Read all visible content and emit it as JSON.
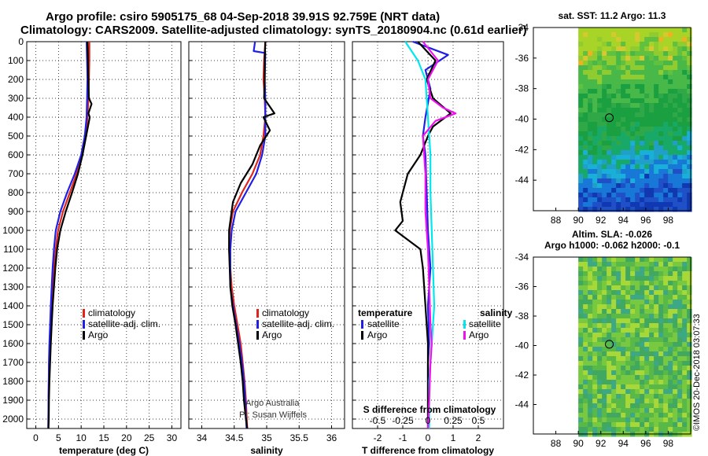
{
  "header": {
    "title_line1": "Argo profile: csiro 5905175_68 04-Sep-2018 39.91S 92.759E (NRT data)",
    "title_line2": "Climatology: CARS2009. Satellite-adjusted climatology: synTS_20180904.nc (0.61d earlier)"
  },
  "colors": {
    "climatology": "#e0241b",
    "satellite": "#1f1fe6",
    "argo": "#000000",
    "sat_salinity": "#00e8ee",
    "argo_salinity": "#ee10ee"
  },
  "chart_data": [
    {
      "type": "line",
      "name": "temperature",
      "xlabel": "temperature (deg C)",
      "xlim": [
        -2,
        32
      ],
      "xticks": [
        0,
        5,
        10,
        15,
        20,
        25,
        30
      ],
      "ylim": [
        0,
        2050
      ],
      "yticks": [
        0,
        100,
        200,
        300,
        400,
        500,
        600,
        700,
        800,
        900,
        1000,
        1100,
        1200,
        1300,
        1400,
        1500,
        1600,
        1700,
        1800,
        1900,
        2000
      ],
      "legend": [
        "climatology",
        "satellite-adj. clim.",
        "Argo"
      ],
      "series": [
        {
          "name": "climatology",
          "color": "#e0241b",
          "x": [
            11.8,
            11.8,
            11.7,
            11.6,
            11.4,
            11.0,
            10.2,
            9.0,
            7.5,
            6.0,
            4.9,
            4.4,
            4.0,
            3.7,
            3.4,
            3.2,
            3.05,
            2.95,
            2.85,
            2.8,
            2.75
          ],
          "y": [
            0,
            100,
            200,
            300,
            400,
            500,
            600,
            700,
            800,
            900,
            1000,
            1100,
            1200,
            1300,
            1400,
            1500,
            1600,
            1700,
            1800,
            1900,
            2050
          ]
        },
        {
          "name": "satellite-adj. clim.",
          "color": "#1f1fe6",
          "x": [
            11.2,
            11.3,
            11.4,
            11.3,
            11.2,
            10.8,
            10.0,
            8.6,
            6.9,
            5.4,
            4.4,
            4.0,
            3.7,
            3.5,
            3.3,
            3.15,
            3.0,
            2.9,
            2.85,
            2.8,
            2.75
          ],
          "y": [
            0,
            100,
            200,
            300,
            400,
            500,
            600,
            700,
            800,
            900,
            1000,
            1100,
            1200,
            1300,
            1400,
            1500,
            1600,
            1700,
            1800,
            1900,
            2050
          ]
        },
        {
          "name": "Argo",
          "color": "#000000",
          "x": [
            11.4,
            11.5,
            11.6,
            11.7,
            12.3,
            11.6,
            11.9,
            11.1,
            10.3,
            9.3,
            8.0,
            6.6,
            5.4,
            4.7,
            4.3,
            4.0,
            3.7,
            3.5,
            3.3,
            3.15,
            3.0,
            2.9,
            2.85,
            2.78
          ],
          "y": [
            0,
            100,
            200,
            300,
            330,
            380,
            400,
            500,
            600,
            700,
            800,
            900,
            1000,
            1100,
            1200,
            1300,
            1400,
            1500,
            1600,
            1700,
            1800,
            1900,
            2000,
            2050
          ]
        }
      ]
    },
    {
      "type": "line",
      "name": "salinity",
      "xlabel": "salinity",
      "xlim": [
        33.8,
        36.2
      ],
      "xticks": [
        34,
        34.5,
        35,
        35.5,
        36
      ],
      "ylim": [
        0,
        2050
      ],
      "legend": [
        "climatology",
        "satellite-adj. clim.",
        "Argo"
      ],
      "annotation": [
        "Argo Australia",
        "PI: Susan Wijffels"
      ],
      "series": [
        {
          "name": "climatology",
          "color": "#e0241b",
          "x": [
            34.98,
            34.96,
            34.95,
            34.97,
            34.98,
            34.95,
            34.9,
            34.78,
            34.62,
            34.48,
            34.43,
            34.42,
            34.44,
            34.46,
            34.5,
            34.55,
            34.6,
            34.63,
            34.66,
            34.68,
            34.7
          ],
          "y": [
            0,
            100,
            200,
            300,
            400,
            500,
            600,
            700,
            800,
            900,
            1000,
            1100,
            1200,
            1300,
            1400,
            1500,
            1600,
            1700,
            1800,
            1900,
            2050
          ]
        },
        {
          "name": "satellite-adj. clim.",
          "color": "#1f1fe6",
          "x": [
            34.82,
            34.8,
            34.98,
            34.97,
            34.98,
            34.98,
            34.93,
            34.84,
            34.68,
            34.52,
            34.46,
            34.44,
            34.44,
            34.44,
            34.48,
            34.53,
            34.58,
            34.62,
            34.65,
            34.67,
            34.69
          ],
          "y": [
            0,
            50,
            60,
            200,
            300,
            500,
            600,
            700,
            800,
            900,
            1000,
            1100,
            1200,
            1300,
            1400,
            1500,
            1600,
            1700,
            1800,
            1900,
            2050
          ]
        },
        {
          "name": "Argo",
          "color": "#000000",
          "x": [
            34.98,
            34.97,
            34.97,
            34.96,
            35.02,
            35.12,
            34.95,
            35.05,
            34.9,
            34.78,
            34.6,
            34.48,
            34.42,
            34.42,
            34.43,
            34.44,
            34.47,
            34.52,
            34.56,
            34.6,
            34.63,
            34.65,
            34.68,
            34.7
          ],
          "y": [
            0,
            100,
            200,
            300,
            330,
            380,
            400,
            470,
            550,
            650,
            750,
            850,
            1000,
            1100,
            1200,
            1300,
            1400,
            1500,
            1600,
            1700,
            1800,
            1900,
            2000,
            2050
          ]
        }
      ]
    },
    {
      "type": "line",
      "name": "difference",
      "xlabel": "T difference from climatology",
      "xlabel_top": "S difference from climatology",
      "xlim": [
        -3,
        3
      ],
      "xticks": [
        -2,
        -1,
        0,
        1,
        2
      ],
      "xticks_top": [
        "-0.5",
        "-0.25",
        "0",
        "0.25",
        "0.5"
      ],
      "xticks_top_values": [
        -2,
        -1,
        0,
        1,
        2
      ],
      "ylim": [
        0,
        2050
      ],
      "legend_left_title": "temperature",
      "legend_right_title": "salinity",
      "legend_left": [
        "satellite",
        "Argo"
      ],
      "legend_right": [
        "satellite",
        "Argo"
      ],
      "series": [
        {
          "name": "T satellite",
          "color": "#1f1fe6",
          "x": [
            -0.6,
            0.8,
            -0.1,
            0.1,
            -0.1,
            -0.2,
            -0.1,
            -0.05,
            0.0,
            0.1,
            0.0,
            0.05,
            0.0,
            0.0,
            0.0,
            0.0
          ],
          "y": [
            0,
            70,
            150,
            250,
            400,
            500,
            600,
            800,
            1000,
            1200,
            1400,
            1600,
            1700,
            1800,
            1900,
            2050
          ]
        },
        {
          "name": "T Argo",
          "color": "#000000",
          "x": [
            -0.4,
            0.3,
            -0.05,
            0.2,
            0.9,
            0.2,
            0.0,
            -0.3,
            -0.8,
            -1.1,
            -1.0,
            -1.3,
            -0.3,
            -0.2,
            -0.1,
            0.0,
            0.0,
            0.0,
            0.0
          ],
          "y": [
            0,
            100,
            200,
            300,
            380,
            450,
            500,
            600,
            700,
            850,
            950,
            1000,
            1100,
            1200,
            1400,
            1600,
            1800,
            1900,
            2050
          ]
        },
        {
          "name": "S satellite",
          "color": "#00e8ee",
          "x": [
            -0.9,
            -0.4,
            -0.1,
            0.0,
            0.1,
            0.1,
            0.15,
            0.2,
            0.25,
            0.2,
            0.15,
            0.1,
            0.05,
            0.05,
            0.05
          ],
          "y": [
            0,
            100,
            200,
            400,
            600,
            800,
            1000,
            1200,
            1400,
            1500,
            1600,
            1700,
            1800,
            1900,
            2050
          ]
        },
        {
          "name": "S Argo",
          "color": "#ee10ee",
          "x": [
            -0.2,
            0.4,
            0.0,
            0.1,
            0.6,
            1.1,
            0.3,
            -0.2,
            -0.1,
            -0.1,
            0.0,
            0.05,
            0.1,
            0.15,
            0.1,
            0.05,
            0.0
          ],
          "y": [
            0,
            100,
            200,
            300,
            350,
            380,
            420,
            500,
            700,
            900,
            1100,
            1300,
            1500,
            1600,
            1700,
            1900,
            2050
          ]
        }
      ]
    },
    {
      "type": "heatmap",
      "name": "sst-map",
      "title": "sat. SST: 11.2 Argo: 11.3",
      "xticks": [
        88,
        90,
        92,
        94,
        96,
        98
      ],
      "yticks": [
        -34,
        -36,
        -38,
        -40,
        -42,
        -44
      ],
      "xlim": [
        86,
        100
      ],
      "ylim": [
        -46,
        -34
      ],
      "marker": {
        "lon": 92.76,
        "lat": -39.91
      }
    },
    {
      "type": "heatmap",
      "name": "sla-map",
      "title": "Altim. SLA: -0.026",
      "subtitle": "Argo h1000: -0.062 h2000: -0.1",
      "xticks": [
        88,
        90,
        92,
        94,
        96,
        98
      ],
      "yticks": [
        -34,
        -36,
        -38,
        -40,
        -42,
        -44
      ],
      "xlim": [
        86,
        100
      ],
      "ylim": [
        -46,
        -34
      ],
      "marker": {
        "lon": 92.76,
        "lat": -39.91
      }
    }
  ],
  "footer": {
    "stamp": "©IMOS 20-Dec-2018 03:07:33"
  }
}
